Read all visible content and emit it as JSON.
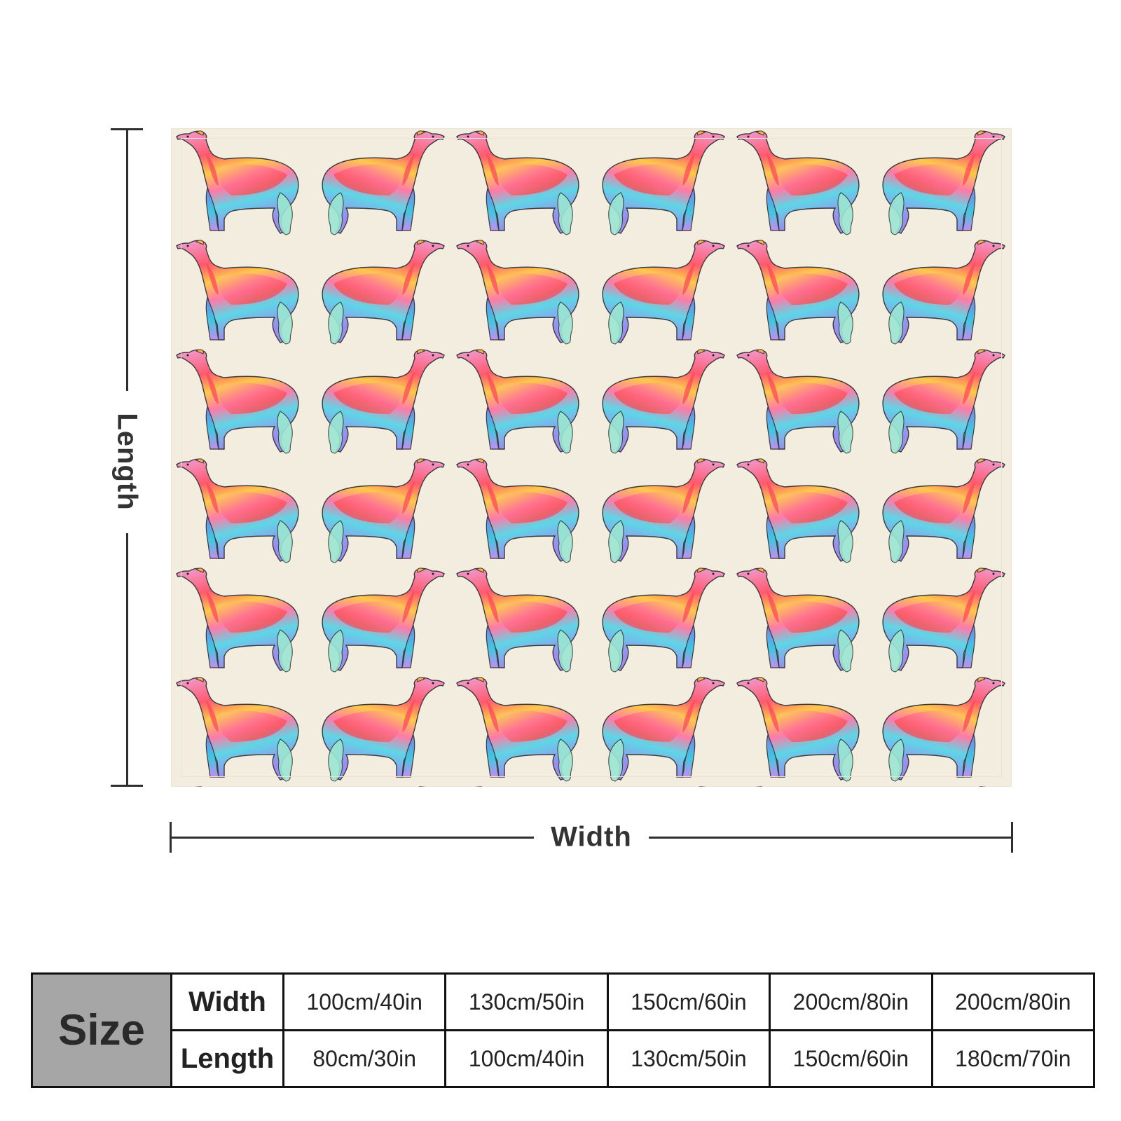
{
  "diagram": {
    "length_label": "Length",
    "width_label": "Width"
  },
  "blanket": {
    "pattern": "mirrored rainbow greyhound silhouettes",
    "background_color": "#f3ede0"
  },
  "size_table": {
    "title": "Size",
    "width_label": "Width",
    "length_label": "Length",
    "widths": [
      "100cm/40in",
      "130cm/50in",
      "150cm/60in",
      "200cm/80in",
      "200cm/80in"
    ],
    "lengths": [
      "80cm/30in",
      "100cm/40in",
      "130cm/50in",
      "150cm/60in",
      "180cm/70in"
    ]
  }
}
